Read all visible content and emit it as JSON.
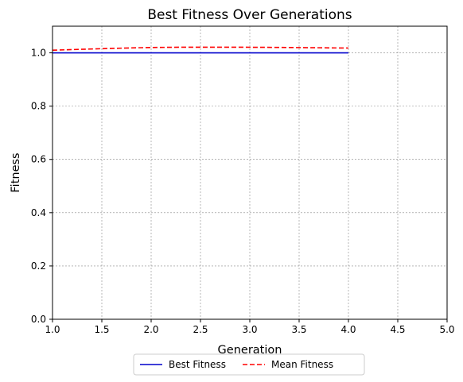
{
  "chart_data": {
    "type": "line",
    "title": "Best Fitness Over Generations",
    "xlabel": "Generation",
    "ylabel": "Fitness",
    "xlim": [
      1.0,
      5.0
    ],
    "ylim": [
      0.0,
      1.1
    ],
    "x_ticks": [
      "1.0",
      "1.5",
      "2.0",
      "2.5",
      "3.0",
      "3.5",
      "4.0",
      "4.5",
      "5.0"
    ],
    "y_ticks": [
      "0.0",
      "0.2",
      "0.4",
      "0.6",
      "0.8",
      "1.0"
    ],
    "grid": true,
    "legend_position": "bottom-center, below axes",
    "series": [
      {
        "name": "Best Fitness",
        "color": "#0000cc",
        "line_style": "solid",
        "x": [
          1,
          2,
          3,
          4
        ],
        "y": [
          1.0,
          1.0,
          1.0,
          1.0
        ]
      },
      {
        "name": "Mean Fitness",
        "color": "#ff0000",
        "line_style": "dashed",
        "x": [
          1,
          2,
          3,
          4
        ],
        "y": [
          1.01,
          1.02,
          1.021,
          1.018
        ]
      }
    ]
  }
}
